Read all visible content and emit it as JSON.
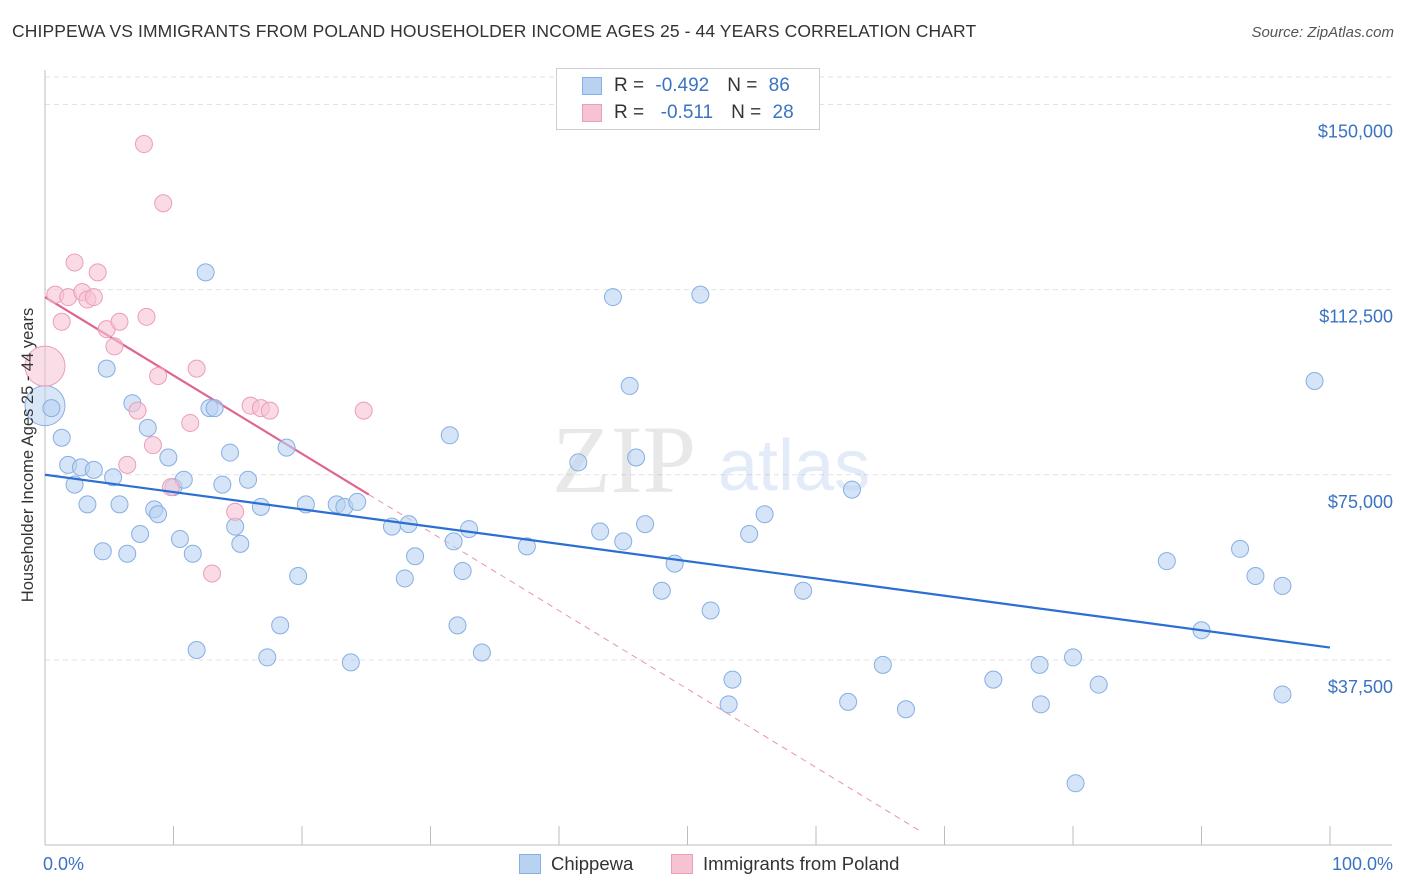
{
  "title": "CHIPPEWA VS IMMIGRANTS FROM POLAND HOUSEHOLDER INCOME AGES 25 - 44 YEARS CORRELATION CHART",
  "source": "Source: ZipAtlas.com",
  "watermark": {
    "zip": "ZIP",
    "atlas": "atlas"
  },
  "colors": {
    "chippewa_fill": "#b9d2f2",
    "chippewa_stroke": "#86afe3",
    "chippewa_line": "#2a6fd1",
    "poland_fill": "#f6c3d3",
    "poland_stroke": "#ec9db7",
    "poland_line": "#e0658e",
    "axis_text": "#3a73c2"
  },
  "legend": {
    "rows": [
      {
        "r_label": "R = ",
        "r_value": "-0.492",
        "n_label": "N = ",
        "n_value": "86"
      },
      {
        "r_label": "R = ",
        "r_value": " -0.511",
        "n_label": "N = ",
        "n_value": "28"
      }
    ]
  },
  "bottom_legend": {
    "series1": "Chippewa",
    "series2": "Immigrants from Poland"
  },
  "chart_data": {
    "type": "scatter",
    "title": "CHIPPEWA VS IMMIGRANTS FROM POLAND HOUSEHOLDER INCOME AGES 25 - 44 YEARS CORRELATION CHART",
    "xlabel": "",
    "ylabel": "Householder Income Ages 25 - 44 years",
    "xlim": [
      0,
      100
    ],
    "ylim": [
      0,
      157000
    ],
    "x_tick_labels": [
      "0.0%",
      "100.0%"
    ],
    "y_ticks": [
      37500,
      75000,
      112500,
      150000
    ],
    "y_tick_labels": [
      "$37,500",
      "$75,000",
      "$112,500",
      "$150,000"
    ],
    "series": [
      {
        "name": "Chippewa",
        "r": -0.492,
        "n": 86,
        "trend": {
          "x": [
            0,
            100
          ],
          "y": [
            75000,
            40000
          ]
        },
        "points": [
          {
            "x": 0.0,
            "y": 89000,
            "big": true
          },
          {
            "x": 0.5,
            "y": 88500
          },
          {
            "x": 1.3,
            "y": 82500
          },
          {
            "x": 1.8,
            "y": 77000
          },
          {
            "x": 2.3,
            "y": 73000
          },
          {
            "x": 2.8,
            "y": 76500
          },
          {
            "x": 3.3,
            "y": 69000
          },
          {
            "x": 3.8,
            "y": 76000
          },
          {
            "x": 4.5,
            "y": 59500
          },
          {
            "x": 4.8,
            "y": 96500
          },
          {
            "x": 5.3,
            "y": 74500
          },
          {
            "x": 5.8,
            "y": 69000
          },
          {
            "x": 6.4,
            "y": 59000
          },
          {
            "x": 6.8,
            "y": 89500
          },
          {
            "x": 7.4,
            "y": 63000
          },
          {
            "x": 8.0,
            "y": 84500
          },
          {
            "x": 8.5,
            "y": 68000
          },
          {
            "x": 8.8,
            "y": 67000
          },
          {
            "x": 9.6,
            "y": 78500
          },
          {
            "x": 10.0,
            "y": 72500
          },
          {
            "x": 10.5,
            "y": 62000
          },
          {
            "x": 10.8,
            "y": 74000
          },
          {
            "x": 11.5,
            "y": 59000
          },
          {
            "x": 11.8,
            "y": 39500
          },
          {
            "x": 12.5,
            "y": 116000
          },
          {
            "x": 12.8,
            "y": 88500
          },
          {
            "x": 13.2,
            "y": 88500
          },
          {
            "x": 13.8,
            "y": 73000
          },
          {
            "x": 14.4,
            "y": 79500
          },
          {
            "x": 14.8,
            "y": 64500
          },
          {
            "x": 15.2,
            "y": 61000
          },
          {
            "x": 15.8,
            "y": 74000
          },
          {
            "x": 16.8,
            "y": 68500
          },
          {
            "x": 17.3,
            "y": 38000
          },
          {
            "x": 18.3,
            "y": 44500
          },
          {
            "x": 18.8,
            "y": 80500
          },
          {
            "x": 19.7,
            "y": 54500
          },
          {
            "x": 20.3,
            "y": 69000
          },
          {
            "x": 22.7,
            "y": 69000
          },
          {
            "x": 23.3,
            "y": 68500
          },
          {
            "x": 23.8,
            "y": 37000
          },
          {
            "x": 24.3,
            "y": 69500
          },
          {
            "x": 27.0,
            "y": 64500
          },
          {
            "x": 28.0,
            "y": 54000
          },
          {
            "x": 28.3,
            "y": 65000
          },
          {
            "x": 28.8,
            "y": 58500
          },
          {
            "x": 32.1,
            "y": 44500
          },
          {
            "x": 31.5,
            "y": 83000
          },
          {
            "x": 31.8,
            "y": 61500
          },
          {
            "x": 32.5,
            "y": 55500
          },
          {
            "x": 33.0,
            "y": 64000
          },
          {
            "x": 34.0,
            "y": 39000
          },
          {
            "x": 37.5,
            "y": 60500
          },
          {
            "x": 41.5,
            "y": 77500
          },
          {
            "x": 43.2,
            "y": 63500
          },
          {
            "x": 44.2,
            "y": 111000
          },
          {
            "x": 45.0,
            "y": 61500
          },
          {
            "x": 45.5,
            "y": 93000
          },
          {
            "x": 46.0,
            "y": 78500
          },
          {
            "x": 46.7,
            "y": 65000
          },
          {
            "x": 48.0,
            "y": 51500
          },
          {
            "x": 49.0,
            "y": 57000
          },
          {
            "x": 51.0,
            "y": 111500
          },
          {
            "x": 51.8,
            "y": 47500
          },
          {
            "x": 53.2,
            "y": 28500
          },
          {
            "x": 53.5,
            "y": 33500
          },
          {
            "x": 54.8,
            "y": 63000
          },
          {
            "x": 56.0,
            "y": 67000
          },
          {
            "x": 59.0,
            "y": 51500
          },
          {
            "x": 62.5,
            "y": 29000
          },
          {
            "x": 62.8,
            "y": 72000
          },
          {
            "x": 65.2,
            "y": 36500
          },
          {
            "x": 67.0,
            "y": 27500
          },
          {
            "x": 73.8,
            "y": 33500
          },
          {
            "x": 77.4,
            "y": 36500
          },
          {
            "x": 77.5,
            "y": 28500
          },
          {
            "x": 80.0,
            "y": 38000
          },
          {
            "x": 80.2,
            "y": 12500
          },
          {
            "x": 82.0,
            "y": 32500
          },
          {
            "x": 87.3,
            "y": 57500
          },
          {
            "x": 90.0,
            "y": 43500
          },
          {
            "x": 93.0,
            "y": 60000
          },
          {
            "x": 94.2,
            "y": 54500
          },
          {
            "x": 96.3,
            "y": 30500
          },
          {
            "x": 96.3,
            "y": 52500
          },
          {
            "x": 98.8,
            "y": 94000
          }
        ]
      },
      {
        "name": "Immigrants from Poland",
        "r": -0.511,
        "n": 28,
        "trend": {
          "x": [
            0,
            25.2
          ],
          "y": [
            111000,
            71000
          ]
        },
        "trend_extension": {
          "x": [
            25.2,
            68.0
          ],
          "y": [
            71000,
            3000
          ]
        },
        "points": [
          {
            "x": 0.0,
            "y": 97000,
            "big": true
          },
          {
            "x": 0.8,
            "y": 111500
          },
          {
            "x": 1.3,
            "y": 106000
          },
          {
            "x": 1.8,
            "y": 111000
          },
          {
            "x": 2.3,
            "y": 118000
          },
          {
            "x": 2.9,
            "y": 112000
          },
          {
            "x": 3.3,
            "y": 110500
          },
          {
            "x": 3.8,
            "y": 111000
          },
          {
            "x": 4.1,
            "y": 116000
          },
          {
            "x": 4.8,
            "y": 104500
          },
          {
            "x": 5.4,
            "y": 101000
          },
          {
            "x": 5.8,
            "y": 106000
          },
          {
            "x": 6.4,
            "y": 77000
          },
          {
            "x": 7.2,
            "y": 88000
          },
          {
            "x": 7.7,
            "y": 142000
          },
          {
            "x": 7.9,
            "y": 107000
          },
          {
            "x": 8.4,
            "y": 81000
          },
          {
            "x": 8.8,
            "y": 95000
          },
          {
            "x": 9.2,
            "y": 130000
          },
          {
            "x": 9.8,
            "y": 72500
          },
          {
            "x": 11.3,
            "y": 85500
          },
          {
            "x": 11.8,
            "y": 96500
          },
          {
            "x": 13.0,
            "y": 55000
          },
          {
            "x": 14.8,
            "y": 67500
          },
          {
            "x": 16.0,
            "y": 89000
          },
          {
            "x": 16.8,
            "y": 88500
          },
          {
            "x": 17.5,
            "y": 88000
          },
          {
            "x": 24.8,
            "y": 88000
          }
        ]
      }
    ]
  }
}
